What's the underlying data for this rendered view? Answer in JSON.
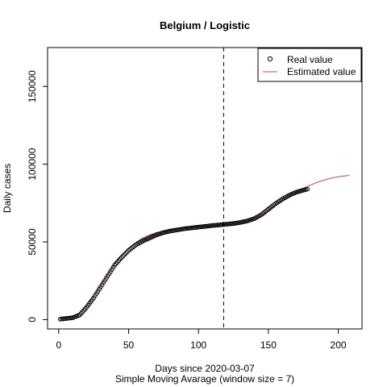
{
  "chart_data": {
    "type": "scatter",
    "title": "Belgium / Logistic",
    "xlabel": "Days since 2020-03-07",
    "sublabel": "Simple Moving Avarage (window size = 7)",
    "ylabel": "Daily cases",
    "xlim": [
      -8,
      217
    ],
    "ylim": [
      -6000,
      175000
    ],
    "xticks": [
      0,
      50,
      100,
      150,
      200
    ],
    "yticks": [
      0,
      50000,
      100000,
      150000
    ],
    "grid": false,
    "legend_position": "top-right",
    "vline": {
      "x": 118,
      "style": "dashed",
      "color": "#000000"
    },
    "series": [
      {
        "name": "Real value",
        "kind": "points",
        "marker": "open-circle",
        "color": "#000000",
        "x_start": 1,
        "x_end": 178,
        "x_step": 1,
        "anchors": [
          [
            1,
            300
          ],
          [
            10,
            1200
          ],
          [
            15,
            3000
          ],
          [
            20,
            8000
          ],
          [
            25,
            14000
          ],
          [
            30,
            21000
          ],
          [
            35,
            28000
          ],
          [
            40,
            35000
          ],
          [
            45,
            40000
          ],
          [
            50,
            44500
          ],
          [
            55,
            48000
          ],
          [
            60,
            50500
          ],
          [
            65,
            52500
          ],
          [
            70,
            54500
          ],
          [
            75,
            56000
          ],
          [
            80,
            57000
          ],
          [
            90,
            58500
          ],
          [
            100,
            59500
          ],
          [
            110,
            60500
          ],
          [
            118,
            61200
          ],
          [
            125,
            61800
          ],
          [
            130,
            62500
          ],
          [
            135,
            63500
          ],
          [
            140,
            65000
          ],
          [
            145,
            67500
          ],
          [
            150,
            71000
          ],
          [
            155,
            74500
          ],
          [
            160,
            77500
          ],
          [
            165,
            80000
          ],
          [
            170,
            82000
          ],
          [
            178,
            84000
          ]
        ]
      },
      {
        "name": "Estimated value",
        "kind": "line",
        "color": "#c0405a",
        "x_start": 1,
        "x_end": 208,
        "x_step": 1,
        "anchors": [
          [
            1,
            500
          ],
          [
            10,
            2000
          ],
          [
            15,
            4500
          ],
          [
            20,
            9000
          ],
          [
            25,
            15000
          ],
          [
            30,
            22000
          ],
          [
            35,
            29000
          ],
          [
            40,
            36000
          ],
          [
            45,
            41500
          ],
          [
            50,
            46000
          ],
          [
            55,
            49500
          ],
          [
            60,
            52500
          ],
          [
            65,
            54500
          ],
          [
            70,
            56000
          ],
          [
            75,
            57000
          ],
          [
            80,
            57800
          ],
          [
            90,
            58800
          ],
          [
            100,
            59700
          ],
          [
            110,
            60400
          ],
          [
            118,
            61000
          ],
          [
            125,
            61500
          ],
          [
            130,
            62200
          ],
          [
            135,
            63200
          ],
          [
            140,
            64800
          ],
          [
            145,
            67200
          ],
          [
            150,
            70500
          ],
          [
            155,
            74000
          ],
          [
            160,
            77000
          ],
          [
            165,
            79800
          ],
          [
            170,
            82200
          ],
          [
            175,
            84500
          ],
          [
            180,
            86500
          ],
          [
            185,
            88300
          ],
          [
            190,
            89800
          ],
          [
            195,
            91000
          ],
          [
            200,
            91900
          ],
          [
            205,
            92500
          ],
          [
            208,
            92800
          ]
        ]
      }
    ]
  }
}
